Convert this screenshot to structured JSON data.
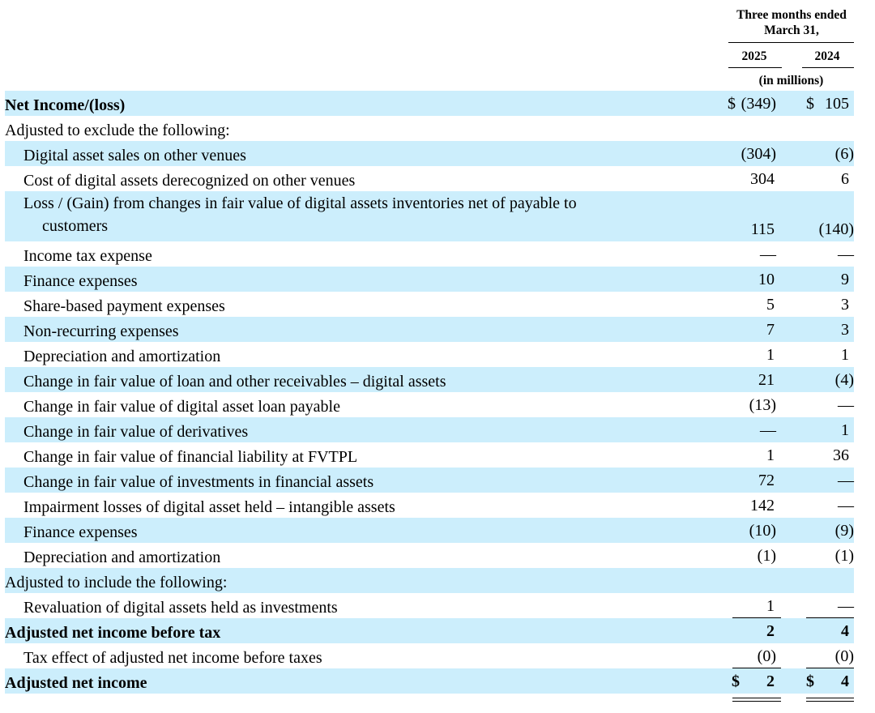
{
  "header": {
    "period": "Three months ended",
    "period2": "March 31,",
    "year1": "2025",
    "year2": "2024",
    "units": "(in millions)"
  },
  "rows": {
    "r0": {
      "label": "Net Income/(loss)",
      "cur1": "$",
      "v1": "(349)",
      "cur2": "$",
      "v2": "105"
    },
    "r1": {
      "label": "Adjusted to exclude the following:"
    },
    "r2": {
      "label": "Digital asset sales on other venues",
      "v1": "(304)",
      "v2": "(6)"
    },
    "r3": {
      "label": "Cost of digital assets derecognized on other venues",
      "v1": "304",
      "v2": "6"
    },
    "r4": {
      "label_line1": "Loss / (Gain) from changes in fair value of digital assets inventories net of payable to",
      "label_line2": "customers",
      "v1": "115",
      "v2": "(140)"
    },
    "r5": {
      "label": "Income tax expense",
      "v1": "—",
      "v2": "—"
    },
    "r6": {
      "label": "Finance expenses",
      "v1": "10",
      "v2": "9"
    },
    "r7": {
      "label": "Share-based payment expenses",
      "v1": "5",
      "v2": "3"
    },
    "r8": {
      "label": "Non-recurring expenses",
      "v1": "7",
      "v2": "3"
    },
    "r9": {
      "label": "Depreciation and amortization",
      "v1": "1",
      "v2": "1"
    },
    "r10": {
      "label": "Change in fair value of loan and other receivables – digital assets",
      "v1": "21",
      "v2": "(4)"
    },
    "r11": {
      "label": "Change in fair value of digital asset loan payable",
      "v1": "(13)",
      "v2": "—"
    },
    "r12": {
      "label": "Change in fair value of derivatives",
      "v1": "—",
      "v2": "1"
    },
    "r13": {
      "label": "Change in fair value of financial liability at FVTPL",
      "v1": "1",
      "v2": "36"
    },
    "r14": {
      "label": "Change in fair value of investments in financial assets",
      "v1": "72",
      "v2": "—"
    },
    "r15": {
      "label": "Impairment losses of digital asset held – intangible assets",
      "v1": "142",
      "v2": "—"
    },
    "r16": {
      "label": "Finance expenses",
      "v1": "(10)",
      "v2": "(9)"
    },
    "r17": {
      "label": "Depreciation and amortization",
      "v1": "(1)",
      "v2": "(1)"
    },
    "r18": {
      "label": "Adjusted to include the following:"
    },
    "r19": {
      "label": "Revaluation of digital assets held as investments",
      "v1": "1",
      "v2": "—"
    },
    "r20": {
      "label": "Adjusted net income before tax",
      "v1": "2",
      "v2": "4"
    },
    "r21": {
      "label": "Tax effect of adjusted net income before taxes",
      "v1": "(0)",
      "v2": "(0)"
    },
    "r22": {
      "label": "Adjusted net income",
      "cur1": "$",
      "v1": "2",
      "cur2": "$",
      "v2": "4"
    }
  },
  "colors": {
    "row_shade": "#cceefc"
  }
}
